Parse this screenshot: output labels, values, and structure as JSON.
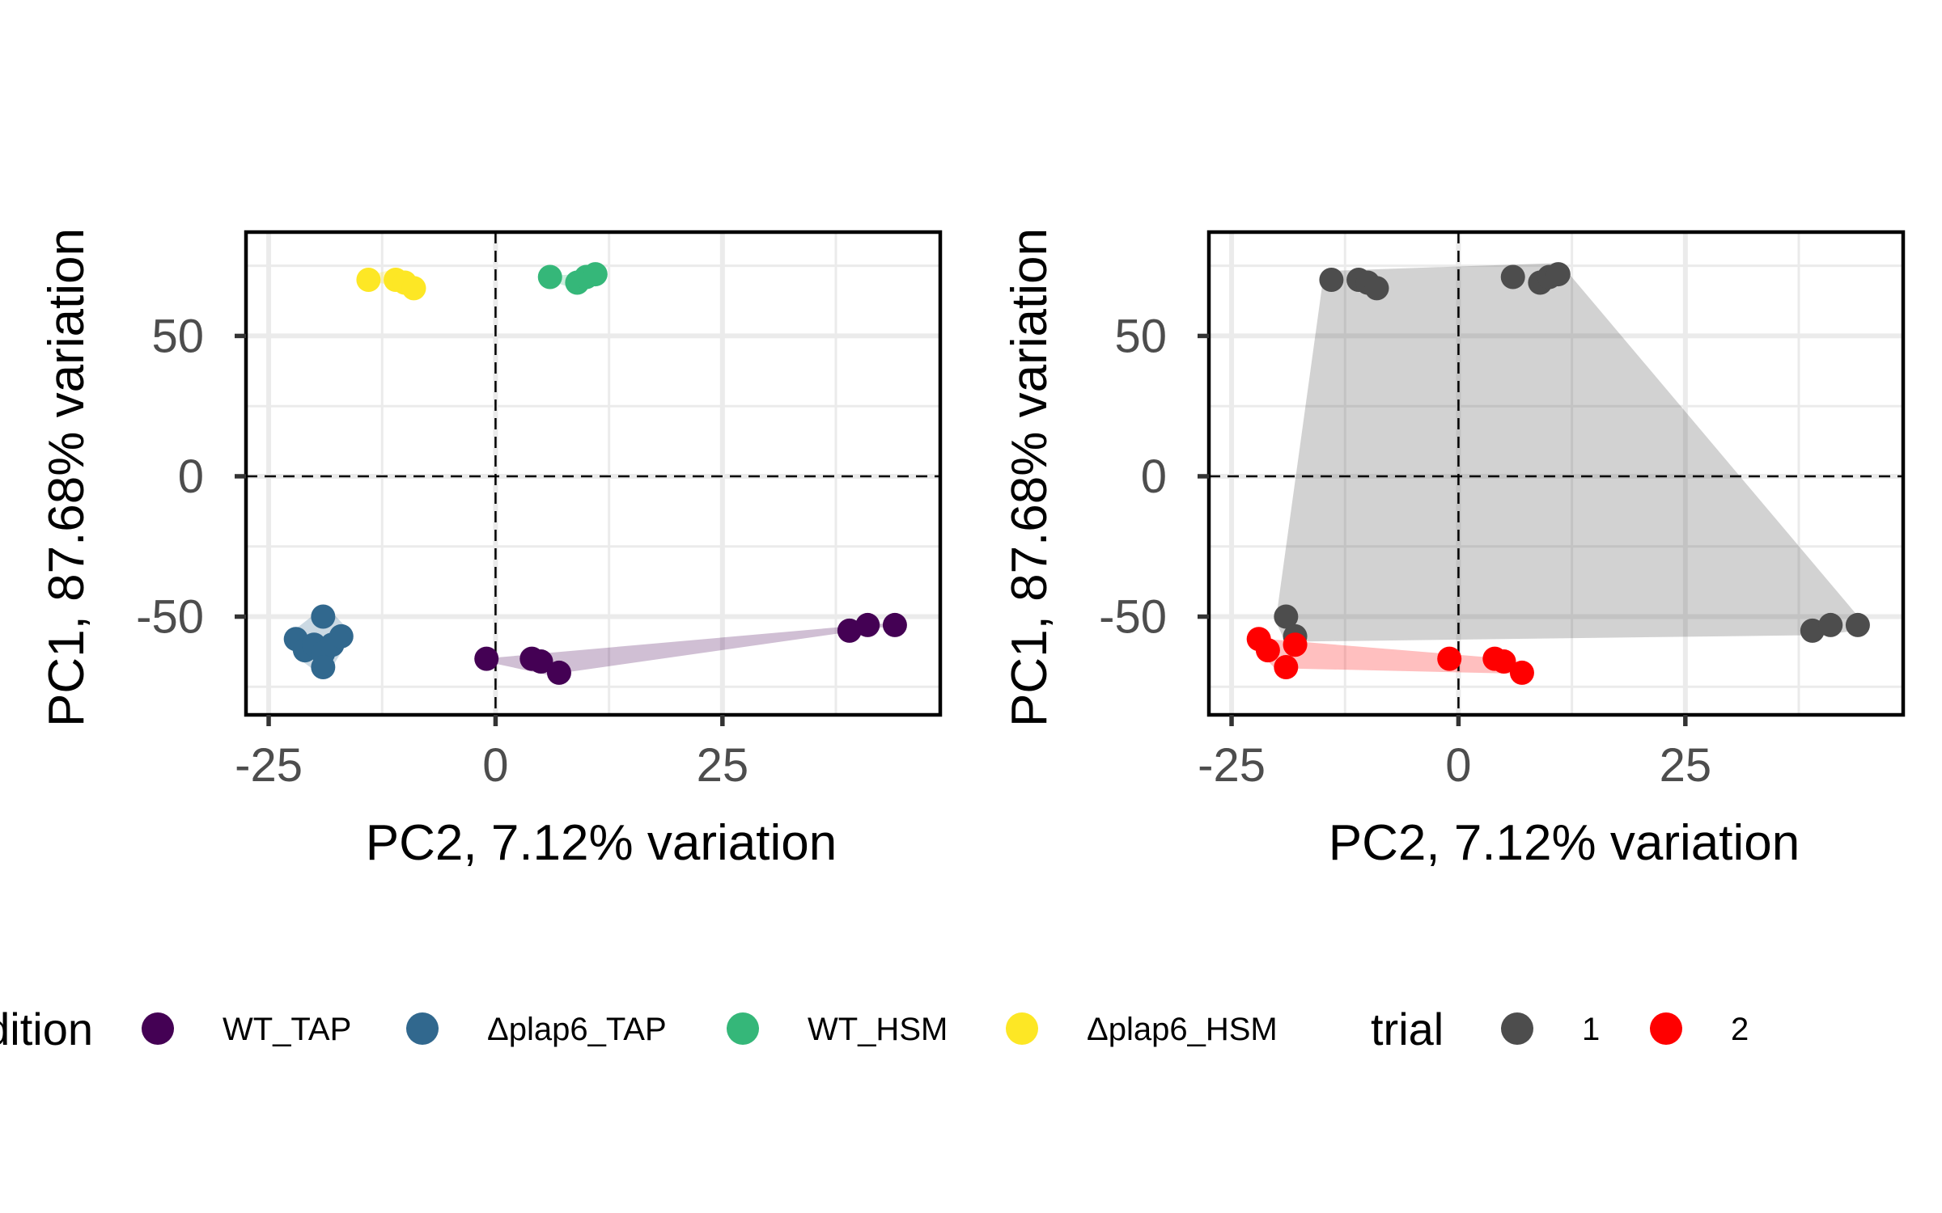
{
  "chart_data": [
    {
      "type": "scatter",
      "xlabel": "PC2, 7.12% variation",
      "ylabel": "PC1, 87.68% variation",
      "xlim": [
        -27.5,
        49
      ],
      "ylim": [
        -85,
        87
      ],
      "xticks": [
        -25,
        0,
        25
      ],
      "yticks": [
        -50,
        0,
        50
      ],
      "grid": true,
      "reference_lines": {
        "x": 0,
        "y": 0,
        "style": "dashed"
      },
      "color_by": "condition",
      "series": [
        {
          "name": "WT_TAP",
          "color": "#440154",
          "hull": true,
          "points": [
            [
              -1,
              -65
            ],
            [
              4,
              -65
            ],
            [
              5,
              -66
            ],
            [
              7,
              -70
            ],
            [
              39,
              -55
            ],
            [
              41,
              -53
            ],
            [
              44,
              -53
            ]
          ]
        },
        {
          "name": "Δplap6_TAP",
          "color": "#31688e",
          "hull": true,
          "points": [
            [
              -19,
              -50
            ],
            [
              -22,
              -58
            ],
            [
              -21,
              -62
            ],
            [
              -20,
              -60
            ],
            [
              -19,
              -63
            ],
            [
              -19,
              -68
            ],
            [
              -18,
              -60
            ],
            [
              -17,
              -57
            ]
          ]
        },
        {
          "name": "WT_HSM",
          "color": "#35b779",
          "hull": true,
          "points": [
            [
              6,
              71
            ],
            [
              9,
              69
            ],
            [
              10,
              71
            ],
            [
              11,
              72
            ]
          ]
        },
        {
          "name": "Δplap6_HSM",
          "color": "#fde725",
          "hull": true,
          "points": [
            [
              -14,
              70
            ],
            [
              -11,
              70
            ],
            [
              -10,
              69
            ],
            [
              -9,
              67
            ]
          ]
        }
      ]
    },
    {
      "type": "scatter",
      "xlabel": "PC2, 7.12% variation",
      "ylabel": "PC1, 87.68% variation",
      "xlim": [
        -27.5,
        49
      ],
      "ylim": [
        -85,
        87
      ],
      "xticks": [
        -25,
        0,
        25
      ],
      "yticks": [
        -50,
        0,
        50
      ],
      "grid": true,
      "reference_lines": {
        "x": 0,
        "y": 0,
        "style": "dashed"
      },
      "color_by": "trial",
      "series": [
        {
          "name": "1",
          "color": "#4d4d4d",
          "hull": true,
          "points": [
            [
              -14,
              70
            ],
            [
              -11,
              70
            ],
            [
              -10,
              69
            ],
            [
              -9,
              67
            ],
            [
              6,
              71
            ],
            [
              9,
              69
            ],
            [
              10,
              71
            ],
            [
              11,
              72
            ],
            [
              -19,
              -50
            ],
            [
              -18,
              -57
            ],
            [
              39,
              -55
            ],
            [
              41,
              -53
            ],
            [
              44,
              -53
            ]
          ]
        },
        {
          "name": "2",
          "color": "#ff0000",
          "hull": true,
          "points": [
            [
              -22,
              -58
            ],
            [
              -21,
              -62
            ],
            [
              -19,
              -68
            ],
            [
              -18,
              -60
            ],
            [
              -1,
              -65
            ],
            [
              4,
              -65
            ],
            [
              5,
              -66
            ],
            [
              7,
              -70
            ]
          ]
        }
      ]
    }
  ],
  "legend": {
    "placement": "bottom",
    "groups": [
      {
        "title": "condition",
        "items": [
          {
            "label": "WT_TAP",
            "color": "#440154"
          },
          {
            "label": "Δplap6_TAP",
            "color": "#31688e"
          },
          {
            "label": "WT_HSM",
            "color": "#35b779"
          },
          {
            "label": "Δplap6_HSM",
            "color": "#fde725"
          }
        ]
      },
      {
        "title": "trial",
        "items": [
          {
            "label": "1",
            "color": "#4d4d4d"
          },
          {
            "label": "2",
            "color": "#ff0000"
          }
        ]
      }
    ]
  }
}
